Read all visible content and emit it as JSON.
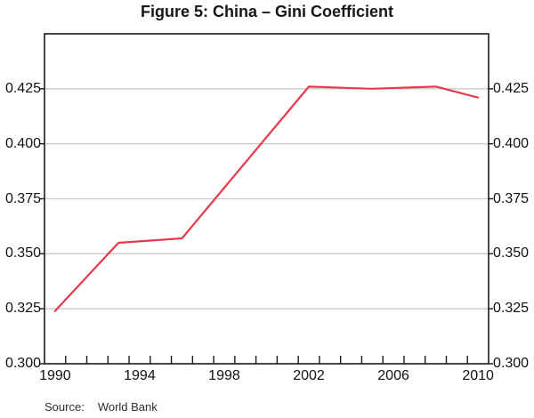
{
  "title": "Figure 5: China – Gini Coefficient",
  "source": {
    "label": "Source:",
    "text": "World Bank"
  },
  "chart_data": {
    "type": "line",
    "title": "Figure 5: China – Gini Coefficient",
    "series_name": "China Gini coefficient",
    "x": [
      1990,
      1993,
      1996,
      2002,
      2005,
      2008,
      2010
    ],
    "values": [
      0.324,
      0.355,
      0.357,
      0.426,
      0.425,
      0.426,
      0.421
    ],
    "xlim": [
      1989.5,
      2010.5
    ],
    "ylim": [
      0.3,
      0.45
    ],
    "x_tick_values": [
      1990,
      1994,
      1998,
      2002,
      2006,
      2010
    ],
    "x_tick_labels": [
      "1990",
      "1994",
      "1998",
      "2002",
      "2006",
      "2010"
    ],
    "x_minor_ticks": {
      "start": 1990.5,
      "end": 2009.5,
      "step": 1
    },
    "y_ticks": [
      0.3,
      0.325,
      0.35,
      0.375,
      0.4,
      0.425
    ],
    "y_tick_labels": [
      "0.300",
      "0.325",
      "0.350",
      "0.375",
      "0.400",
      "0.425"
    ],
    "y_labels_both_sides": true,
    "grid": "horizontal",
    "legend": "none",
    "line_color": "#e8394b",
    "grid_color": "#cbcbcb",
    "axis_color": "#1a1a1a"
  }
}
